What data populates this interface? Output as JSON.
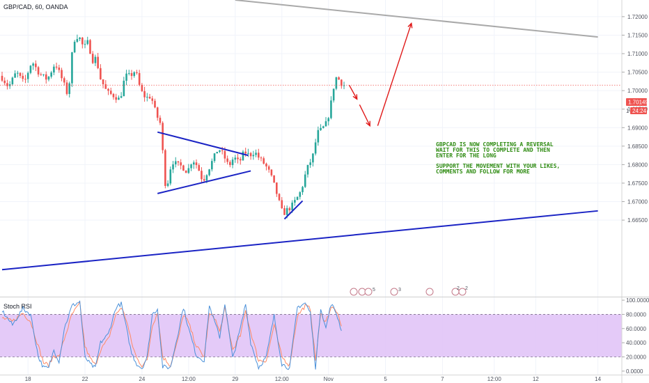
{
  "header": {
    "symbol_title": "GBP/CAD, 60, OANDA"
  },
  "price_tag": {
    "last_price": "1.70149",
    "countdown": "24:24",
    "marker": "1"
  },
  "annotation": {
    "lines": [
      "GBPCAD IS NOW COMPLETING A REVERSAL",
      "WAIT FOR THIS TO COMPLETE AND THEN",
      "ENTER FOR THE LONG",
      "",
      "SUPPORT THE MOVEMENT WITH YOUR LIKES,",
      "COMMENTS AND FOLLOW FOR MORE"
    ]
  },
  "indicator": {
    "name": "Stoch RSI",
    "upper_band": 80,
    "lower_band": 20
  },
  "event_badges": [
    "5",
    "3",
    "2",
    "2"
  ],
  "colors": {
    "up": "#26a69a",
    "down": "#ef5350",
    "trend": "#1a23c4",
    "arrow": "#e01818",
    "resistance": "#a9a9a9",
    "annotation": "#2e8b11",
    "k_line": "#4a90d9",
    "d_line": "#ff8a65",
    "rsi_band": "#e1c4f7",
    "price_tag": "#ef5350"
  },
  "chart_data": [
    {
      "type": "candlestick",
      "title": "GBP/CAD, 60, OANDA",
      "ylim": [
        1.6445,
        1.7245
      ],
      "y_ticks": [
        "1.72000",
        "1.71500",
        "1.71000",
        "1.70500",
        "1.70000",
        "1.69500",
        "1.69000",
        "1.68500",
        "1.68000",
        "1.67500",
        "1.67000",
        "1.66500"
      ],
      "x_ticks": [
        "18",
        "22",
        "24",
        "12:00",
        "29",
        "12:00",
        "Nov",
        "5",
        "7",
        "12:00",
        "12",
        "14"
      ],
      "x_tick_index": [
        10,
        32,
        54,
        72,
        90,
        108,
        126,
        148,
        170,
        190,
        206,
        230
      ],
      "last_price": 1.70149,
      "candle_path": [
        [
          0,
          1.704
        ],
        [
          3,
          1.701
        ],
        [
          6,
          1.705
        ],
        [
          9,
          1.702
        ],
        [
          12,
          1.708
        ],
        [
          15,
          1.7045
        ],
        [
          18,
          1.703
        ],
        [
          21,
          1.7075
        ],
        [
          24,
          1.7025
        ],
        [
          26,
          1.6985
        ],
        [
          28,
          1.7135
        ],
        [
          30,
          1.715
        ],
        [
          32,
          1.7115
        ],
        [
          34,
          1.7135
        ],
        [
          35,
          1.708
        ],
        [
          37,
          1.709
        ],
        [
          38,
          1.704
        ],
        [
          41,
          1.6995
        ],
        [
          44,
          1.6985
        ],
        [
          46,
          1.6975
        ],
        [
          48,
          1.704
        ],
        [
          50,
          1.704
        ],
        [
          52,
          1.7055
        ],
        [
          54,
          1.7
        ],
        [
          56,
          1.698
        ],
        [
          58,
          1.6985
        ],
        [
          60,
          1.6935
        ],
        [
          62,
          1.6905
        ],
        [
          63,
          1.6765
        ],
        [
          64,
          1.6735
        ],
        [
          66,
          1.681
        ],
        [
          68,
          1.68
        ],
        [
          70,
          1.6795
        ],
        [
          72,
          1.678
        ],
        [
          74,
          1.6815
        ],
        [
          76,
          1.6795
        ],
        [
          78,
          1.6755
        ],
        [
          80,
          1.6785
        ],
        [
          82,
          1.6815
        ],
        [
          84,
          1.6845
        ],
        [
          86,
          1.6825
        ],
        [
          88,
          1.6795
        ],
        [
          90,
          1.682
        ],
        [
          92,
          1.6805
        ],
        [
          94,
          1.6835
        ],
        [
          96,
          1.6825
        ],
        [
          98,
          1.6835
        ],
        [
          100,
          1.6815
        ],
        [
          102,
          1.68
        ],
        [
          104,
          1.6775
        ],
        [
          106,
          1.6735
        ],
        [
          108,
          1.6685
        ],
        [
          109,
          1.6665
        ],
        [
          110,
          1.6675
        ],
        [
          112,
          1.6685
        ],
        [
          114,
          1.6705
        ],
        [
          116,
          1.673
        ],
        [
          118,
          1.6785
        ],
        [
          120,
          1.6815
        ],
        [
          121,
          1.6835
        ],
        [
          122,
          1.6885
        ],
        [
          124,
          1.6895
        ],
        [
          126,
          1.6915
        ],
        [
          128,
          1.6985
        ],
        [
          129,
          1.7035
        ],
        [
          130,
          1.7035
        ],
        [
          131,
          1.7025
        ],
        [
          132,
          1.7015
        ]
      ],
      "trend_lines": [
        {
          "from": [
            60,
            1.6888
          ],
          "to": [
            95,
            1.6825
          ]
        },
        {
          "from": [
            60,
            1.6722
          ],
          "to": [
            96,
            1.6783
          ]
        },
        {
          "from": [
            0,
            1.6516
          ],
          "to": [
            230,
            1.6675
          ]
        },
        {
          "from": [
            109,
            1.6653
          ],
          "to": [
            116,
            1.6702
          ]
        },
        {
          "from": [
            90,
            1.7245
          ],
          "to": [
            230,
            1.7145
          ]
        }
      ],
      "projection_arrows": [
        {
          "from": [
            134,
            1.7015
          ],
          "to": [
            137,
            1.6977
          ]
        },
        {
          "from": [
            138,
            1.6962
          ],
          "to": [
            142,
            1.6905
          ]
        },
        {
          "from": [
            145,
            1.6905
          ],
          "to": [
            158,
            1.7182
          ]
        }
      ]
    },
    {
      "type": "line",
      "title": "Stoch RSI",
      "ylim": [
        -5,
        103
      ],
      "y_ticks": [
        "100.0000",
        "80.0000",
        "60.0000",
        "40.0000",
        "20.0000",
        "0.0000"
      ],
      "bands": [
        20,
        80
      ],
      "series_k_path": [
        [
          0,
          85
        ],
        [
          4,
          65
        ],
        [
          8,
          88
        ],
        [
          11,
          80
        ],
        [
          14,
          20
        ],
        [
          16,
          5
        ],
        [
          18,
          4
        ],
        [
          20,
          30
        ],
        [
          22,
          14
        ],
        [
          24,
          60
        ],
        [
          27,
          92
        ],
        [
          30,
          98
        ],
        [
          32,
          20
        ],
        [
          34,
          10
        ],
        [
          36,
          4
        ],
        [
          38,
          40
        ],
        [
          41,
          52
        ],
        [
          44,
          90
        ],
        [
          46,
          95
        ],
        [
          48,
          60
        ],
        [
          50,
          25
        ],
        [
          52,
          10
        ],
        [
          54,
          4
        ],
        [
          56,
          20
        ],
        [
          58,
          80
        ],
        [
          60,
          88
        ],
        [
          62,
          6
        ],
        [
          65,
          5
        ],
        [
          68,
          55
        ],
        [
          70,
          90
        ],
        [
          72,
          60
        ],
        [
          75,
          22
        ],
        [
          78,
          15
        ],
        [
          80,
          92
        ],
        [
          82,
          70
        ],
        [
          84,
          48
        ],
        [
          86,
          96
        ],
        [
          89,
          18
        ],
        [
          92,
          60
        ],
        [
          94,
          95
        ],
        [
          96,
          40
        ],
        [
          99,
          5
        ],
        [
          102,
          20
        ],
        [
          105,
          78
        ],
        [
          108,
          10
        ],
        [
          111,
          4
        ],
        [
          114,
          90
        ],
        [
          117,
          96
        ],
        [
          119,
          82
        ],
        [
          121,
          5
        ],
        [
          123,
          90
        ],
        [
          125,
          60
        ],
        [
          127,
          95
        ],
        [
          129,
          82
        ],
        [
          131,
          58
        ]
      ],
      "series_d_path": [
        [
          0,
          75
        ],
        [
          4,
          70
        ],
        [
          8,
          82
        ],
        [
          11,
          70
        ],
        [
          14,
          35
        ],
        [
          16,
          12
        ],
        [
          18,
          8
        ],
        [
          20,
          22
        ],
        [
          22,
          20
        ],
        [
          24,
          45
        ],
        [
          27,
          80
        ],
        [
          30,
          95
        ],
        [
          32,
          35
        ],
        [
          34,
          18
        ],
        [
          36,
          8
        ],
        [
          38,
          30
        ],
        [
          41,
          45
        ],
        [
          44,
          80
        ],
        [
          46,
          90
        ],
        [
          48,
          72
        ],
        [
          50,
          40
        ],
        [
          52,
          18
        ],
        [
          54,
          8
        ],
        [
          56,
          15
        ],
        [
          58,
          65
        ],
        [
          60,
          82
        ],
        [
          62,
          20
        ],
        [
          65,
          8
        ],
        [
          68,
          45
        ],
        [
          70,
          80
        ],
        [
          72,
          68
        ],
        [
          75,
          35
        ],
        [
          78,
          20
        ],
        [
          80,
          80
        ],
        [
          82,
          76
        ],
        [
          84,
          55
        ],
        [
          86,
          88
        ],
        [
          89,
          30
        ],
        [
          92,
          50
        ],
        [
          94,
          85
        ],
        [
          96,
          55
        ],
        [
          99,
          15
        ],
        [
          102,
          15
        ],
        [
          105,
          65
        ],
        [
          108,
          20
        ],
        [
          111,
          8
        ],
        [
          114,
          78
        ],
        [
          117,
          92
        ],
        [
          119,
          88
        ],
        [
          121,
          15
        ],
        [
          123,
          80
        ],
        [
          125,
          70
        ],
        [
          127,
          90
        ],
        [
          129,
          85
        ],
        [
          131,
          62
        ]
      ]
    }
  ]
}
